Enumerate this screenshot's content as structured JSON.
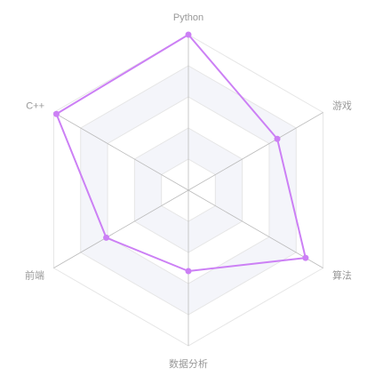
{
  "chart_data": {
    "type": "radar",
    "indicators": [
      "Python",
      "游戏",
      "算法",
      "数据分析",
      "前端",
      "C++"
    ],
    "max": 100,
    "levels": 5,
    "series": [
      {
        "values": [
          100,
          66,
          87,
          52,
          61,
          98
        ],
        "color": "#cc80f5"
      }
    ],
    "colors": {
      "split_area": [
        "#ffffff",
        "#f4f5fa"
      ],
      "split_line": "#e6e6e6",
      "axis_line": "#bbbbbb",
      "label": "#999999"
    }
  }
}
